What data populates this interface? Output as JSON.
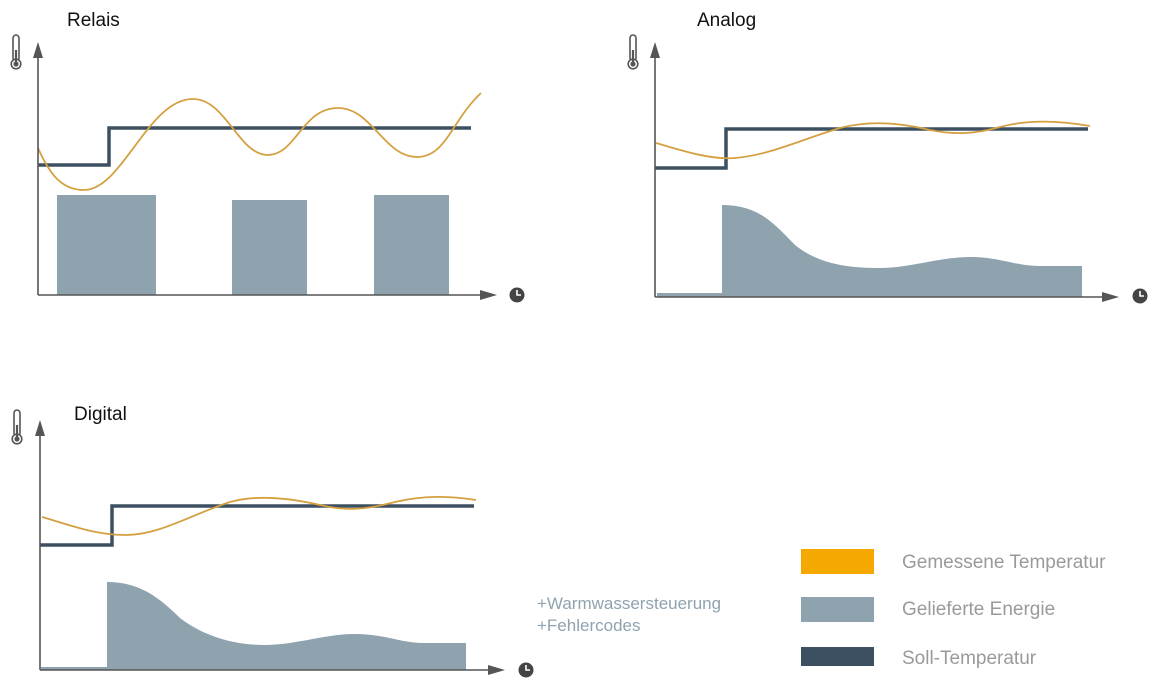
{
  "panels": {
    "relais": {
      "title": "Relais"
    },
    "analog": {
      "title": "Analog"
    },
    "digital": {
      "title": "Digital"
    }
  },
  "digital_extras": [
    "+Warmwassersteuerung",
    "+Fehlercodes"
  ],
  "legend": [
    {
      "label": "Gemessene Temperatur",
      "color": "#F5A800"
    },
    {
      "label": "Gelieferte Energie",
      "color": "#8FA3AF"
    },
    {
      "label": "Soll-Temperatur",
      "color": "#3D5061"
    }
  ],
  "colors": {
    "axis": "#555555",
    "measured_curve": "#D4A040",
    "setpoint": "#3D5061",
    "energy": "#8FA3AF",
    "extras_text": "#8FA3AF",
    "legend_text": "#9A9A9A"
  },
  "icons": {
    "y_axis": "thermometer-icon",
    "x_axis": "clock-icon"
  }
}
